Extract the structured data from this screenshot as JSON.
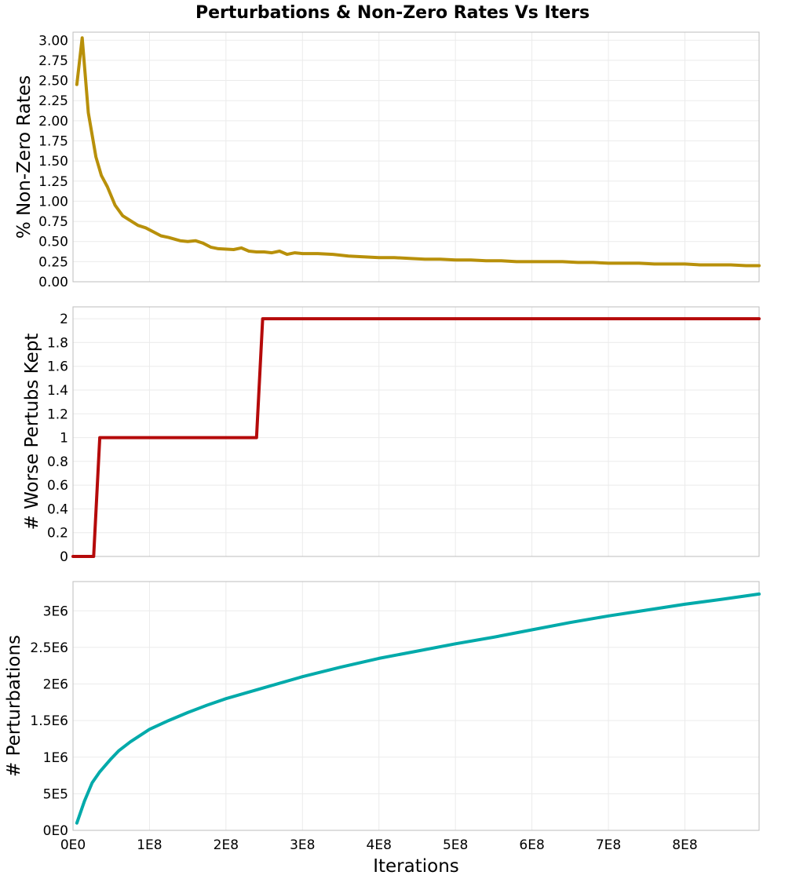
{
  "figure": {
    "title": "Perturbations & Non-Zero Rates Vs Iters"
  },
  "chart_data": [
    {
      "type": "line",
      "ylabel": "% Non-Zero Rates",
      "xlabel": "",
      "xlim": [
        0,
        897000000
      ],
      "ylim": [
        0,
        3.1
      ],
      "grid": true,
      "yticks": [
        0,
        0.25,
        0.5,
        0.75,
        1.0,
        1.25,
        1.5,
        1.75,
        2.0,
        2.25,
        2.5,
        2.75,
        3.0
      ],
      "ytick_labels": [
        "0.00",
        "0.25",
        "0.50",
        "0.75",
        "1.00",
        "1.25",
        "1.50",
        "1.75",
        "2.00",
        "2.25",
        "2.50",
        "2.75",
        "3.00"
      ],
      "xticks": [
        0,
        100000000,
        200000000,
        300000000,
        400000000,
        500000000,
        600000000,
        700000000,
        800000000
      ],
      "xtick_labels": [],
      "series": [
        {
          "color": "#b8900a",
          "x": [
            5000000,
            12000000,
            20000000,
            30000000,
            37000000,
            45000000,
            55000000,
            65000000,
            85000000,
            95000000,
            115000000,
            125000000,
            140000000,
            150000000,
            160000000,
            170000000,
            180000000,
            190000000,
            210000000,
            220000000,
            230000000,
            240000000,
            250000000,
            260000000,
            270000000,
            280000000,
            290000000,
            300000000,
            320000000,
            340000000,
            360000000,
            380000000,
            400000000,
            420000000,
            440000000,
            460000000,
            480000000,
            500000000,
            520000000,
            540000000,
            560000000,
            580000000,
            600000000,
            620000000,
            640000000,
            660000000,
            680000000,
            700000000,
            720000000,
            740000000,
            760000000,
            780000000,
            800000000,
            820000000,
            840000000,
            860000000,
            880000000,
            897000000
          ],
          "y": [
            2.45,
            3.03,
            2.1,
            1.55,
            1.32,
            1.18,
            0.95,
            0.82,
            0.7,
            0.67,
            0.57,
            0.55,
            0.51,
            0.5,
            0.51,
            0.48,
            0.43,
            0.41,
            0.4,
            0.42,
            0.38,
            0.37,
            0.37,
            0.36,
            0.38,
            0.34,
            0.36,
            0.35,
            0.35,
            0.34,
            0.32,
            0.31,
            0.3,
            0.3,
            0.29,
            0.28,
            0.28,
            0.27,
            0.27,
            0.26,
            0.26,
            0.25,
            0.25,
            0.25,
            0.25,
            0.24,
            0.24,
            0.23,
            0.23,
            0.23,
            0.22,
            0.22,
            0.22,
            0.21,
            0.21,
            0.21,
            0.2,
            0.2
          ]
        }
      ]
    },
    {
      "type": "line",
      "ylabel": "# Worse Pertubs Kept",
      "xlabel": "",
      "xlim": [
        0,
        897000000
      ],
      "ylim": [
        0,
        2.1
      ],
      "grid": true,
      "yticks": [
        0,
        0.2,
        0.4,
        0.6,
        0.8,
        1.0,
        1.2,
        1.4,
        1.6,
        1.8,
        2.0
      ],
      "ytick_labels": [
        "0",
        "0.2",
        "0.4",
        "0.6",
        "0.8",
        "1",
        "1.2",
        "1.4",
        "1.6",
        "1.8",
        "2"
      ],
      "xticks": [
        0,
        100000000,
        200000000,
        300000000,
        400000000,
        500000000,
        600000000,
        700000000,
        800000000
      ],
      "xtick_labels": [],
      "series": [
        {
          "color": "#b50a0a",
          "x": [
            0,
            27000000,
            35000000,
            240000000,
            248000000,
            897000000
          ],
          "y": [
            0,
            0,
            1,
            1,
            2,
            2
          ]
        }
      ]
    },
    {
      "type": "line",
      "ylabel": "# Perturbations",
      "xlabel": "Iterations",
      "xlim": [
        0,
        897000000
      ],
      "ylim": [
        0,
        3400000
      ],
      "grid": true,
      "yticks": [
        0,
        500000,
        1000000,
        1500000,
        2000000,
        2500000,
        3000000
      ],
      "ytick_labels": [
        "0E0",
        "5E5",
        "1E6",
        "1.5E6",
        "2E6",
        "2.5E6",
        "3E6"
      ],
      "xticks": [
        0,
        100000000,
        200000000,
        300000000,
        400000000,
        500000000,
        600000000,
        700000000,
        800000000
      ],
      "xtick_labels": [
        "0E0",
        "1E8",
        "2E8",
        "3E8",
        "4E8",
        "5E8",
        "6E8",
        "7E8",
        "8E8"
      ],
      "series": [
        {
          "color": "#00aaaa",
          "x": [
            5000000,
            15000000,
            25000000,
            35000000,
            50000000,
            60000000,
            75000000,
            100000000,
            125000000,
            150000000,
            175000000,
            200000000,
            250000000,
            300000000,
            350000000,
            400000000,
            450000000,
            500000000,
            550000000,
            600000000,
            650000000,
            700000000,
            750000000,
            800000000,
            850000000,
            897000000
          ],
          "y": [
            100000,
            400000,
            650000,
            800000,
            980000,
            1090000,
            1210000,
            1380000,
            1500000,
            1610000,
            1710000,
            1800000,
            1950000,
            2100000,
            2230000,
            2350000,
            2450000,
            2550000,
            2640000,
            2740000,
            2840000,
            2930000,
            3010000,
            3090000,
            3160000,
            3230000
          ]
        }
      ]
    }
  ]
}
